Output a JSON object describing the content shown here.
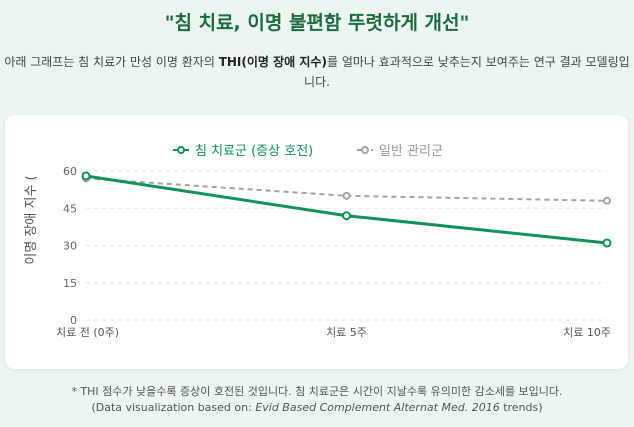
{
  "header": {
    "title": "\"침 치료, 이명 불편함 뚜렷하게 개선\"",
    "subtitle_pre": "아래 그래프는 침 치료가 만성 이명 환자의 ",
    "subtitle_bold": "THI(이명 장애 지수)",
    "subtitle_post": "를 얼마나 효과적으로 낮추는지 보여주는 연구 결과 모델링입니다."
  },
  "chart_data": {
    "type": "line",
    "categories": [
      "치료 전 (0주)",
      "치료 5주",
      "치료 10주"
    ],
    "series": [
      {
        "name": "침 치료군 (증상 호전)",
        "values": [
          58,
          42,
          31
        ],
        "color": "#13915a",
        "style": "solid"
      },
      {
        "name": "일반 관리군",
        "values": [
          57,
          50,
          48
        ],
        "color": "#a3a3a8",
        "style": "dashed"
      }
    ],
    "ylabel": "이명 장애 지수 (",
    "ylim": [
      0,
      60
    ],
    "yticks": [
      "0",
      "15",
      "30",
      "45",
      "60"
    ],
    "grid": true,
    "legend": "top-center"
  },
  "footer": {
    "note": "* THI 점수가 낮을수록 증상이 호전된 것입니다. 침 치료군은 시간이 지날수록 유의미한 감소세를 보입니다.",
    "source_pre": "(Data visualization based on: ",
    "source_journal": "Evid Based Complement Alternat Med. 2016",
    "source_post": " trends)"
  }
}
